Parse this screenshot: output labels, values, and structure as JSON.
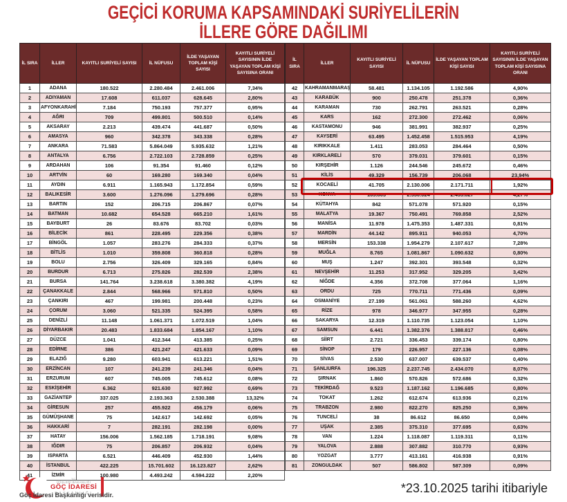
{
  "title": {
    "line1": "GEÇİCİ KORUMA KAPSAMINDAKİ SURİYELİLERİN",
    "line2": "İLLERE GÖRE DAĞILIMI"
  },
  "table": {
    "headers": [
      "İL SIRA",
      "İLLER",
      "KAYITLI SURİYELİ SAYISI",
      "İL NÜFUSU",
      "İLDE YAŞAYAN TOPLAM KİŞİ SAYISI",
      "KAYITLI SURİYELİ SAYISININ İLDE YAŞAYAN TOPLAM KİŞİ SAYISINA ORANI"
    ],
    "left_rows": [
      [
        "1",
        "ADANA",
        "180.522",
        "2.280.484",
        "2.461.006",
        "7,34%"
      ],
      [
        "2",
        "ADIYAMAN",
        "17.608",
        "611.037",
        "628.645",
        "2,80%"
      ],
      [
        "3",
        "AFYONKARAHİSAR",
        "7.184",
        "750.193",
        "757.377",
        "0,95%"
      ],
      [
        "4",
        "AĞRI",
        "709",
        "499.801",
        "500.510",
        "0,14%"
      ],
      [
        "5",
        "AKSARAY",
        "2.213",
        "439.474",
        "441.687",
        "0,50%"
      ],
      [
        "6",
        "AMASYA",
        "960",
        "342.378",
        "343.338",
        "0,28%"
      ],
      [
        "7",
        "ANKARA",
        "71.583",
        "5.864.049",
        "5.935.632",
        "1,21%"
      ],
      [
        "8",
        "ANTALYA",
        "6.756",
        "2.722.103",
        "2.728.859",
        "0,25%"
      ],
      [
        "9",
        "ARDAHAN",
        "106",
        "91.354",
        "91.460",
        "0,12%"
      ],
      [
        "10",
        "ARTVİN",
        "60",
        "169.280",
        "169.340",
        "0,04%"
      ],
      [
        "11",
        "AYDIN",
        "6.911",
        "1.165.943",
        "1.172.854",
        "0,59%"
      ],
      [
        "12",
        "BALIKESİR",
        "3.600",
        "1.276.096",
        "1.279.696",
        "0,28%"
      ],
      [
        "13",
        "BARTIN",
        "152",
        "206.715",
        "206.867",
        "0,07%"
      ],
      [
        "14",
        "BATMAN",
        "10.682",
        "654.528",
        "665.210",
        "1,61%"
      ],
      [
        "15",
        "BAYBURT",
        "26",
        "83.676",
        "83.702",
        "0,03%"
      ],
      [
        "16",
        "BİLECİK",
        "861",
        "228.495",
        "229.356",
        "0,38%"
      ],
      [
        "17",
        "BİNGÖL",
        "1.057",
        "283.276",
        "284.333",
        "0,37%"
      ],
      [
        "18",
        "BİTLİS",
        "1.010",
        "359.808",
        "360.818",
        "0,28%"
      ],
      [
        "19",
        "BOLU",
        "2.756",
        "326.409",
        "329.165",
        "0,84%"
      ],
      [
        "20",
        "BURDUR",
        "6.713",
        "275.826",
        "282.539",
        "2,38%"
      ],
      [
        "21",
        "BURSA",
        "141.764",
        "3.238.618",
        "3.380.382",
        "4,19%"
      ],
      [
        "22",
        "ÇANAKKALE",
        "2.844",
        "568.966",
        "571.810",
        "0,50%"
      ],
      [
        "23",
        "ÇANKIRI",
        "467",
        "199.981",
        "200.448",
        "0,23%"
      ],
      [
        "24",
        "ÇORUM",
        "3.060",
        "521.335",
        "524.395",
        "0,58%"
      ],
      [
        "25",
        "DENİZLİ",
        "11.148",
        "1.061.371",
        "1.072.519",
        "1,04%"
      ],
      [
        "26",
        "DİYARBAKIR",
        "20.483",
        "1.833.684",
        "1.854.167",
        "1,10%"
      ],
      [
        "27",
        "DÜZCE",
        "1.041",
        "412.344",
        "413.385",
        "0,25%"
      ],
      [
        "28",
        "EDİRNE",
        "386",
        "421.247",
        "421.633",
        "0,09%"
      ],
      [
        "29",
        "ELAZIĞ",
        "9.280",
        "603.941",
        "613.221",
        "1,51%"
      ],
      [
        "30",
        "ERZİNCAN",
        "107",
        "241.239",
        "241.346",
        "0,04%"
      ],
      [
        "31",
        "ERZURUM",
        "607",
        "745.005",
        "745.612",
        "0,08%"
      ],
      [
        "32",
        "ESKİŞEHİR",
        "6.362",
        "921.630",
        "927.992",
        "0,69%"
      ],
      [
        "33",
        "GAZİANTEP",
        "337.025",
        "2.193.363",
        "2.530.388",
        "13,32%"
      ],
      [
        "34",
        "GİRESUN",
        "257",
        "455.922",
        "456.179",
        "0,06%"
      ],
      [
        "35",
        "GÜMÜŞHANE",
        "75",
        "142.617",
        "142.692",
        "0,05%"
      ],
      [
        "36",
        "HAKKARİ",
        "7",
        "282.191",
        "282.198",
        "0,00%"
      ],
      [
        "37",
        "HATAY",
        "156.006",
        "1.562.185",
        "1.718.191",
        "9,08%"
      ],
      [
        "38",
        "IĞDIR",
        "75",
        "206.857",
        "206.932",
        "0,04%"
      ],
      [
        "39",
        "ISPARTA",
        "6.521",
        "446.409",
        "452.930",
        "1,44%"
      ],
      [
        "40",
        "İSTANBUL",
        "422.225",
        "15.701.602",
        "16.123.827",
        "2,62%"
      ],
      [
        "41",
        "İZMİR",
        "100.980",
        "4.493.242",
        "4.594.222",
        "2,20%"
      ]
    ],
    "right_rows": [
      [
        "42",
        "KAHRAMANMARAŞ",
        "58.481",
        "1.134.105",
        "1.192.586",
        "4,90%"
      ],
      [
        "43",
        "KARABÜK",
        "900",
        "250.478",
        "251.378",
        "0,36%"
      ],
      [
        "44",
        "KARAMAN",
        "730",
        "262.791",
        "263.521",
        "0,28%"
      ],
      [
        "45",
        "KARS",
        "162",
        "272.300",
        "272.462",
        "0,06%"
      ],
      [
        "46",
        "KASTAMONU",
        "946",
        "381.991",
        "382.937",
        "0,25%"
      ],
      [
        "47",
        "KAYSERİ",
        "63.495",
        "1.452.458",
        "1.515.953",
        "4,19%"
      ],
      [
        "48",
        "KIRIKKALE",
        "1.411",
        "283.053",
        "284.464",
        "0,50%"
      ],
      [
        "49",
        "KIRKLARELİ",
        "570",
        "379.031",
        "379.601",
        "0,15%"
      ],
      [
        "50",
        "KIRŞEHİR",
        "1.126",
        "244.546",
        "245.672",
        "0,46%"
      ],
      [
        "51",
        "KİLİS",
        "49.329",
        "156.739",
        "206.068",
        "23,94%"
      ],
      [
        "52",
        "KOCAELİ",
        "41.705",
        "2.130.006",
        "2.171.711",
        "1,92%"
      ],
      [
        "53",
        "KONYA",
        "103.803",
        "2.330.024",
        "2.433.827",
        "4,27%"
      ],
      [
        "54",
        "KÜTAHYA",
        "842",
        "571.078",
        "571.920",
        "0,15%"
      ],
      [
        "55",
        "MALATYA",
        "19.367",
        "750.491",
        "769.858",
        "2,52%"
      ],
      [
        "56",
        "MANİSA",
        "11.978",
        "1.475.353",
        "1.487.331",
        "0,81%"
      ],
      [
        "57",
        "MARDİN",
        "44.142",
        "895.911",
        "940.053",
        "4,70%"
      ],
      [
        "58",
        "MERSİN",
        "153.338",
        "1.954.279",
        "2.107.617",
        "7,28%"
      ],
      [
        "59",
        "MUĞLA",
        "8.765",
        "1.081.867",
        "1.090.632",
        "0,80%"
      ],
      [
        "60",
        "MUŞ",
        "1.247",
        "392.301",
        "393.548",
        "0,32%"
      ],
      [
        "61",
        "NEVŞEHİR",
        "11.253",
        "317.952",
        "329.205",
        "3,42%"
      ],
      [
        "62",
        "NİĞDE",
        "4.356",
        "372.708",
        "377.064",
        "1,16%"
      ],
      [
        "63",
        "ORDU",
        "725",
        "770.711",
        "771.436",
        "0,09%"
      ],
      [
        "64",
        "OSMANİYE",
        "27.199",
        "561.061",
        "588.260",
        "4,62%"
      ],
      [
        "65",
        "RİZE",
        "978",
        "346.977",
        "347.955",
        "0,28%"
      ],
      [
        "66",
        "SAKARYA",
        "12.319",
        "1.110.735",
        "1.123.054",
        "1,10%"
      ],
      [
        "67",
        "SAMSUN",
        "6.441",
        "1.382.376",
        "1.388.817",
        "0,46%"
      ],
      [
        "68",
        "SİİRT",
        "2.721",
        "336.453",
        "339.174",
        "0,80%"
      ],
      [
        "69",
        "SİNOP",
        "179",
        "226.957",
        "227.136",
        "0,08%"
      ],
      [
        "70",
        "SİVAS",
        "2.530",
        "637.007",
        "639.537",
        "0,40%"
      ],
      [
        "71",
        "ŞANLIURFA",
        "196.325",
        "2.237.745",
        "2.434.070",
        "8,07%"
      ],
      [
        "72",
        "ŞIRNAK",
        "1.860",
        "570.826",
        "572.686",
        "0,32%"
      ],
      [
        "73",
        "TEKİRDAĞ",
        "9.523",
        "1.187.162",
        "1.196.685",
        "0,80%"
      ],
      [
        "74",
        "TOKAT",
        "1.262",
        "612.674",
        "613.936",
        "0,21%"
      ],
      [
        "75",
        "TRABZON",
        "2.980",
        "822.270",
        "825.250",
        "0,36%"
      ],
      [
        "76",
        "TUNCELİ",
        "38",
        "86.612",
        "86.650",
        "0,04%"
      ],
      [
        "77",
        "UŞAK",
        "2.385",
        "375.310",
        "377.695",
        "0,63%"
      ],
      [
        "78",
        "VAN",
        "1.224",
        "1.118.087",
        "1.119.311",
        "0,11%"
      ],
      [
        "79",
        "YALOVA",
        "2.888",
        "307.882",
        "310.770",
        "0,93%"
      ],
      [
        "80",
        "YOZGAT",
        "3.777",
        "413.161",
        "416.938",
        "0,91%"
      ],
      [
        "81",
        "ZONGULDAK",
        "507",
        "586.802",
        "587.309",
        "0,09%"
      ]
    ],
    "highlighted_province": "KOCAELİ"
  },
  "footer": {
    "logo": {
      "tc": "T.C.",
      "ministry": "İÇİŞLERİ BAKANLIĞI",
      "org_line1": "GÖÇ İDARESİ",
      "org_line2": "BAŞKANLIĞI"
    },
    "source_note": "Göç İdaresi Başkanlığı verisidir.",
    "date_note": "*23.10.2025 tarihi itibariyle"
  },
  "colors": {
    "title_red": "#be2b2b",
    "header_bg": "#6b2b2a",
    "row_alt_pink": "#f2dcdb",
    "highlight_red": "#c00000",
    "logo_red": "#d2232a"
  }
}
